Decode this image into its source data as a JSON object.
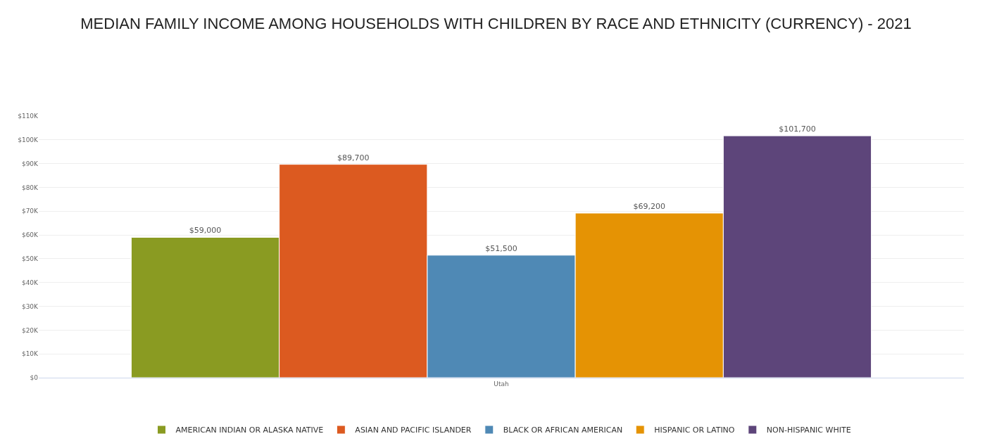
{
  "chart_data": {
    "type": "bar",
    "title": "MEDIAN FAMILY INCOME AMONG HOUSEHOLDS WITH CHILDREN BY RACE AND ETHNICITY (CURRENCY) - 2021",
    "categories": [
      "Utah"
    ],
    "series": [
      {
        "name": "AMERICAN INDIAN OR ALASKA NATIVE",
        "color": "#8a9b22",
        "values": [
          59000
        ],
        "value_labels": [
          "$59,000"
        ]
      },
      {
        "name": "ASIAN AND PACIFIC ISLANDER",
        "color": "#dc5a20",
        "values": [
          89700
        ],
        "value_labels": [
          "$89,700"
        ]
      },
      {
        "name": "BLACK OR AFRICAN AMERICAN",
        "color": "#4f89b5",
        "values": [
          51500
        ],
        "value_labels": [
          "$51,500"
        ]
      },
      {
        "name": "HISPANIC OR LATINO",
        "color": "#e59304",
        "values": [
          69200
        ],
        "value_labels": [
          "$69,200"
        ]
      },
      {
        "name": "NON-HISPANIC WHITE",
        "color": "#5d457a",
        "values": [
          101700
        ],
        "value_labels": [
          "$101,700"
        ]
      }
    ],
    "ylim": [
      0,
      110000
    ],
    "yticks": [
      {
        "value": 0,
        "label": "$0"
      },
      {
        "value": 10000,
        "label": "$10K"
      },
      {
        "value": 20000,
        "label": "$20K"
      },
      {
        "value": 30000,
        "label": "$30K"
      },
      {
        "value": 40000,
        "label": "$40K"
      },
      {
        "value": 50000,
        "label": "$50K"
      },
      {
        "value": 60000,
        "label": "$60K"
      },
      {
        "value": 70000,
        "label": "$70K"
      },
      {
        "value": 80000,
        "label": "$80K"
      },
      {
        "value": 90000,
        "label": "$90K"
      },
      {
        "value": 100000,
        "label": "$100K"
      },
      {
        "value": 110000,
        "label": "$110K"
      }
    ],
    "grid": "y",
    "legend": "bottom"
  }
}
